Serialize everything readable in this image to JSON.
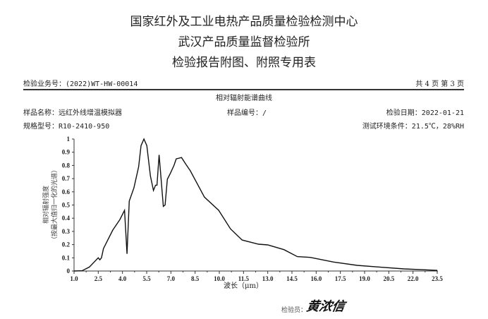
{
  "header": {
    "title_line1": "国家红外及工业电热产品质量检验检测中心",
    "title_line2": "武汉产品质量监督检验所",
    "title_line3": "检验报告附图、附照专用表",
    "business_no": "检验业务号：(2022)WT-HW-00014",
    "page_info": "共 4 页 第 3 页"
  },
  "info": {
    "chart_title": "相对辐射能谱曲线",
    "sample_name": "样品名称：远红外线增温模拟器",
    "sample_no": "样品编号：/",
    "test_date": "检验日期：2022-01-21",
    "model": "规格型号：R10-2410-950",
    "environment": "测试环境条件：21.5℃，28%RH"
  },
  "footer": {
    "inspector_label": "检验员：",
    "signature": "黄浓信"
  },
  "chart_data": {
    "type": "line",
    "title": "相对辐射能谱曲线",
    "xlabel": "波长（μm）",
    "ylabel": "相对辐射强度",
    "ylabel2": "（按最大值归一化的光谱）",
    "xlim": [
      1.0,
      23.5
    ],
    "ylim": [
      0,
      1
    ],
    "x_ticks": [
      "1.0",
      "2.5",
      "4.0",
      "5.5",
      "7.0",
      "8.5",
      "10.0",
      "11.5",
      "13.0",
      "14.5",
      "16.0",
      "17.5",
      "19.0",
      "20.5",
      "22.0",
      "23.5"
    ],
    "y_ticks": [
      "0",
      "0.1",
      "0.2",
      "0.3",
      "0.4",
      "0.5",
      "0.6",
      "0.7",
      "0.8",
      "0.9",
      "1"
    ],
    "grid": false,
    "color": "#111111",
    "x": [
      1.0,
      1.5,
      1.95,
      2.5,
      2.6,
      2.7,
      2.82,
      3.4,
      3.84,
      4.13,
      4.28,
      4.42,
      4.71,
      5.0,
      5.15,
      5.33,
      5.51,
      5.73,
      5.92,
      6.05,
      6.14,
      6.27,
      6.39,
      6.53,
      6.64,
      6.78,
      6.97,
      7.19,
      7.33,
      7.66,
      7.92,
      8.2,
      9.08,
      9.96,
      10.69,
      11.41,
      12.43,
      13.0,
      14.0,
      14.83,
      15.63,
      17.08,
      18.54,
      20.0,
      21.44,
      23.5
    ],
    "y": [
      0,
      0.002,
      0.03,
      0.1,
      0.085,
      0.1,
      0.17,
      0.31,
      0.39,
      0.46,
      0.13,
      0.53,
      0.63,
      0.79,
      0.95,
      1.0,
      0.95,
      0.72,
      0.61,
      0.65,
      0.65,
      0.88,
      0.7,
      0.49,
      0.5,
      0.695,
      0.74,
      0.8,
      0.85,
      0.86,
      0.81,
      0.76,
      0.56,
      0.46,
      0.32,
      0.235,
      0.203,
      0.198,
      0.162,
      0.109,
      0.103,
      0.068,
      0.043,
      0.029,
      0.016,
      0.005
    ]
  }
}
